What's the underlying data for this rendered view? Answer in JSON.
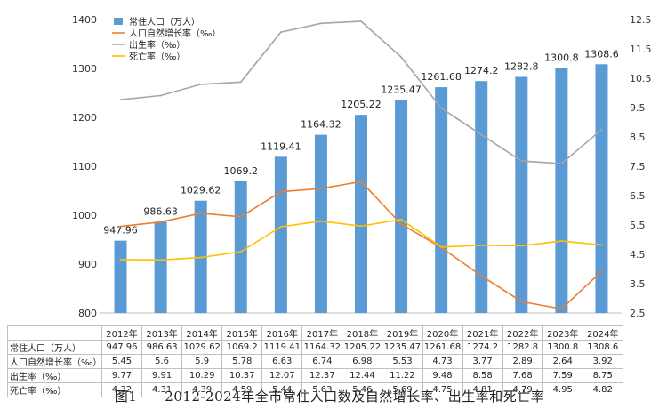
{
  "chart_data": {
    "type": "bar+line",
    "caption": "图1　　2012-2024年全市常住人口数及自然增长率、出生率和死亡率",
    "categories": [
      "2012年",
      "2013年",
      "2014年",
      "2015年",
      "2016年",
      "2017年",
      "2018年",
      "2019年",
      "2020年",
      "2021年",
      "2022年",
      "2023年",
      "2024年"
    ],
    "left_axis": {
      "min": 800,
      "max": 1400,
      "ticks": [
        "800",
        "900",
        "1000",
        "1100",
        "1200",
        "1300",
        "1400"
      ]
    },
    "right_axis": {
      "min": 2.5,
      "max": 12.5,
      "ticks": [
        "2.5",
        "3.5",
        "4.5",
        "5.5",
        "6.5",
        "7.5",
        "8.5",
        "9.5",
        "10.5",
        "11.5",
        "12.5"
      ]
    },
    "series": [
      {
        "name": "常住人口（万人）",
        "type": "bar",
        "axis": "left",
        "color": "#5b9bd5",
        "values": [
          947.96,
          986.63,
          1029.62,
          1069.2,
          1119.41,
          1164.32,
          1205.22,
          1235.47,
          1261.68,
          1274.2,
          1282.8,
          1300.8,
          1308.6
        ],
        "labels": [
          "947.96",
          "986.63",
          "1029.62",
          "1069.2",
          "1119.41",
          "1164.32",
          "1205.22",
          "1235.47",
          "1261.68",
          "1274.2",
          "1282.8",
          "1300.8",
          "1308.6"
        ]
      },
      {
        "name": "人口自然增长率（‰）",
        "type": "line",
        "axis": "right",
        "color": "#ed7d31",
        "values": [
          5.45,
          5.6,
          5.9,
          5.78,
          6.63,
          6.74,
          6.98,
          5.53,
          4.73,
          3.77,
          2.89,
          2.64,
          3.92
        ],
        "labels": [
          "5.45",
          "5.6",
          "5.9",
          "5.78",
          "6.63",
          "6.74",
          "6.98",
          "5.53",
          "4.73",
          "3.77",
          "2.89",
          "2.64",
          "3.92"
        ]
      },
      {
        "name": "出生率（‰）",
        "type": "line",
        "axis": "right",
        "color": "#a5a5a5",
        "values": [
          9.77,
          9.91,
          10.29,
          10.37,
          12.07,
          12.37,
          12.44,
          11.22,
          9.48,
          8.58,
          7.68,
          7.59,
          8.75
        ],
        "labels": [
          "9.77",
          "9.91",
          "10.29",
          "10.37",
          "12.07",
          "12.37",
          "12.44",
          "11.22",
          "9.48",
          "8.58",
          "7.68",
          "7.59",
          "8.75"
        ]
      },
      {
        "name": "死亡率（‰）",
        "type": "line",
        "axis": "right",
        "color": "#ffc000",
        "values": [
          4.32,
          4.31,
          4.39,
          4.59,
          5.44,
          5.63,
          5.46,
          5.69,
          4.75,
          4.81,
          4.79,
          4.95,
          4.82
        ],
        "labels": [
          "4.32",
          "4.31",
          "4.39",
          "4.59",
          "5.44",
          "5.63",
          "5.46",
          "5.69",
          "4.75",
          "4.81",
          "4.79",
          "4.95",
          "4.82"
        ]
      }
    ],
    "legend": {
      "position": "top-left"
    }
  }
}
